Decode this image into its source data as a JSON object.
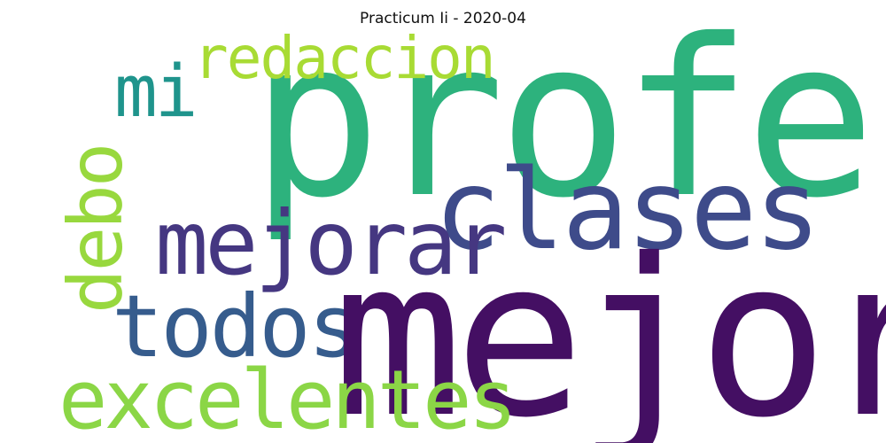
{
  "title": "Practicum Ii - 2020-04",
  "words": {
    "profe": {
      "text": "profe",
      "color": "#2db27d"
    },
    "mejor": {
      "text": "mejor",
      "color": "#440f63"
    },
    "clases": {
      "text": "clases",
      "color": "#3e4b8a"
    },
    "mejorar": {
      "text": "mejorar",
      "color": "#453781"
    },
    "todos": {
      "text": "todos",
      "color": "#365c8d"
    },
    "excelentes": {
      "text": "excelentes",
      "color": "#8bd646"
    },
    "redaccion": {
      "text": "redaccion",
      "color": "#a8db34"
    },
    "mi": {
      "text": "mi",
      "color": "#1f948c"
    },
    "debo": {
      "text": "debo",
      "color": "#98d83e"
    }
  }
}
